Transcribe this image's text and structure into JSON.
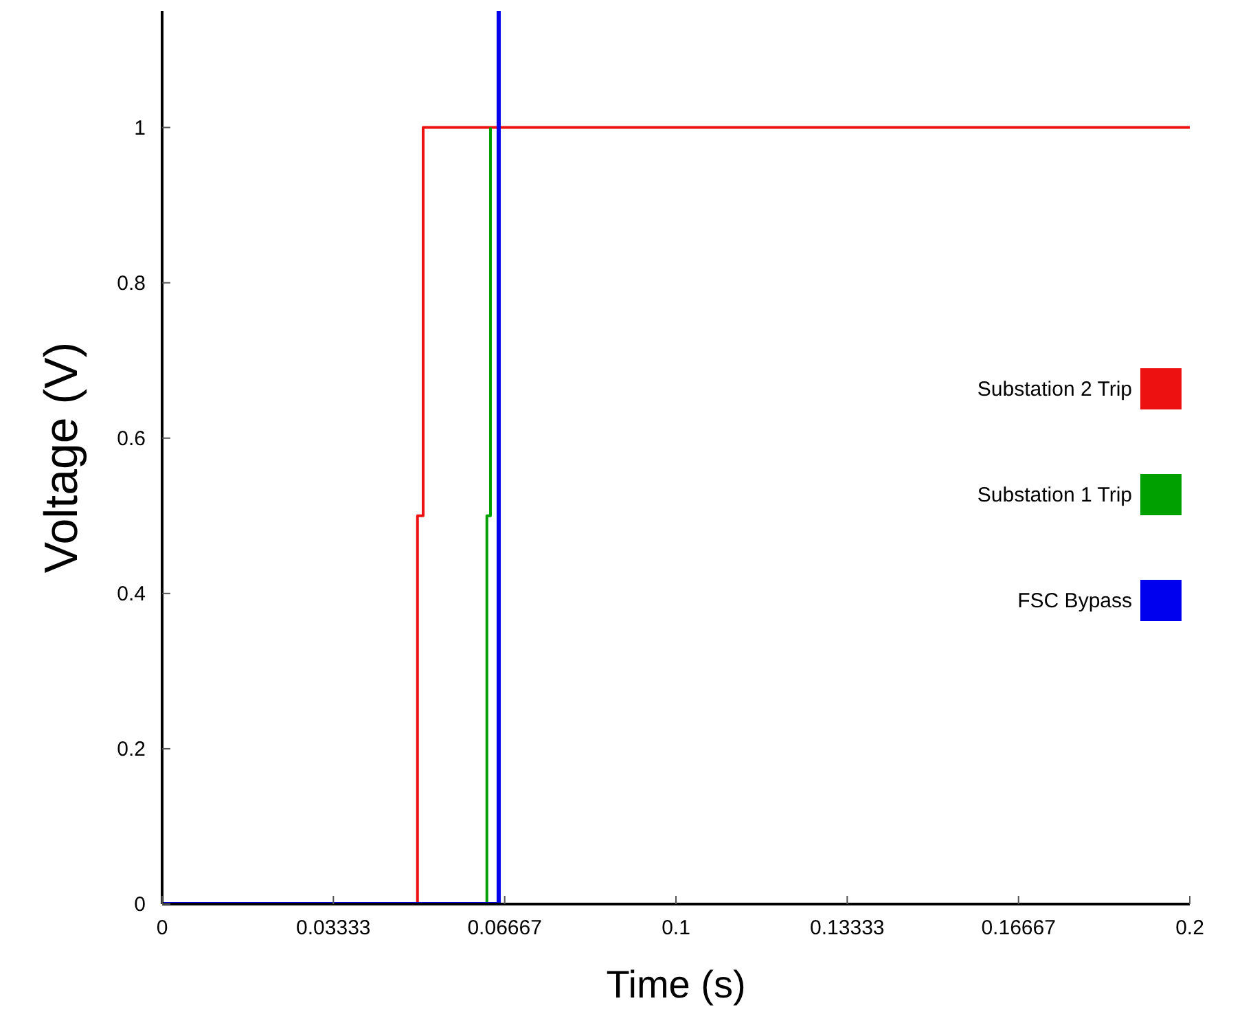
{
  "chart_data": {
    "type": "line",
    "xlabel": "Time (s)",
    "ylabel": "Voltage (V)",
    "xlim": [
      0,
      0.2
    ],
    "xticks": [
      0,
      0.03333,
      0.06667,
      0.1,
      0.13333,
      0.16667,
      0.2
    ],
    "ylim": [
      0,
      1.15
    ],
    "yticks": [
      0,
      0.2,
      0.4,
      0.6,
      0.8,
      1
    ],
    "grid": false,
    "legend": "right",
    "line_style": "solid",
    "marker": "none",
    "series": [
      {
        "name": "Substation 2 Trip",
        "color": "#ee1111",
        "x": [
          0,
          0.0497,
          0.0497,
          0.0508,
          0.0508,
          0.2
        ],
        "values": [
          0,
          0,
          0.5,
          0.5,
          1,
          1
        ]
      },
      {
        "name": "Substation 1 Trip",
        "color": "#00a000",
        "x": [
          0,
          0.0632,
          0.0632,
          0.0639,
          0.0639
        ],
        "values": [
          0,
          0,
          0.5,
          0.5,
          1
        ]
      },
      {
        "name": "FSC Bypass",
        "color": "#0000ee",
        "x": [
          0,
          0.0655,
          0.0655
        ],
        "values": [
          0,
          0,
          1.15
        ]
      }
    ]
  }
}
